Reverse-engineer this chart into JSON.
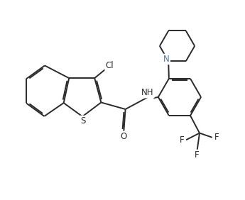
{
  "background_color": "#ffffff",
  "line_color": "#2a2a2a",
  "N_color": "#4a7ab5",
  "figsize": [
    3.45,
    2.82
  ],
  "dpi": 100,
  "lw": 1.4,
  "xlim": [
    0,
    10
  ],
  "ylim": [
    0,
    8.2
  ]
}
